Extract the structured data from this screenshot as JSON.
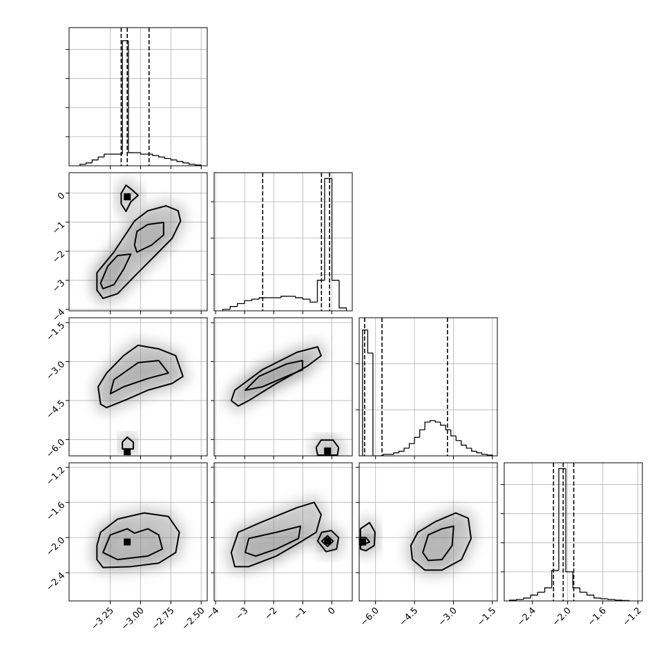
{
  "chart_data": {
    "type": "corner",
    "grid": true,
    "line_color": "#000000",
    "point_color": "#7f7f7f",
    "params": [
      {
        "lim": [
          -3.59,
          -2.45
        ],
        "ticks": [
          {
            "value": -3.25,
            "label": "−3.25"
          },
          {
            "value": -3.0,
            "label": "−3.00"
          },
          {
            "value": -2.75,
            "label": "−2.75"
          },
          {
            "value": -2.5,
            "label": "−2.50"
          }
        ]
      },
      {
        "lim": [
          -4.05,
          0.7
        ],
        "ticks": [
          {
            "value": -4,
            "label": "−4"
          },
          {
            "value": -3,
            "label": "−3"
          },
          {
            "value": -2,
            "label": "−2"
          },
          {
            "value": -1,
            "label": "−1"
          },
          0
        ]
      },
      {
        "lim": [
          -6.63,
          -1.31
        ],
        "ticks": [
          {
            "value": -6.0,
            "label": "−6.0"
          },
          {
            "value": -4.5,
            "label": "−4.5"
          },
          {
            "value": -3.0,
            "label": "−3.0"
          },
          {
            "value": -1.5,
            "label": "−1.5"
          }
        ]
      },
      {
        "lim": [
          -2.72,
          -1.15
        ],
        "ticks": [
          {
            "value": -2.4,
            "label": "−2.4"
          },
          {
            "value": -2.0,
            "label": "−2.0"
          },
          {
            "value": -1.6,
            "label": "−1.6"
          },
          {
            "value": -1.2,
            "label": "−1.2"
          }
        ]
      }
    ],
    "histograms": [
      {
        "param": 0,
        "ylim": [
          0,
          95
        ],
        "yticks": [
          20,
          40,
          60,
          80
        ],
        "bins": [
          -3.5,
          -3.45,
          -3.4,
          -3.35,
          -3.3,
          -3.25,
          -3.2,
          -3.15,
          -3.1,
          -3.05,
          -3.0,
          -2.95,
          -2.9,
          -2.85,
          -2.8,
          -2.75,
          -2.7,
          -2.65,
          -2.6,
          -2.55,
          -2.5
        ],
        "counts": [
          1,
          2,
          4,
          6,
          8,
          8,
          8,
          86,
          9,
          9,
          8,
          8,
          7,
          6,
          5,
          4,
          3,
          2,
          1,
          0.5
        ],
        "quantiles": [
          -3.16,
          -3.11,
          -2.93
        ]
      },
      {
        "param": 1,
        "ylim": [
          0,
          95
        ],
        "yticks": [
          25,
          50,
          75
        ],
        "bins": [
          -3.75,
          -3.5,
          -3.25,
          -3.0,
          -2.75,
          -2.5,
          -2.25,
          -2.0,
          -1.75,
          -1.5,
          -1.25,
          -1.0,
          -0.75,
          -0.5,
          -0.25,
          0,
          0.25,
          0.5
        ],
        "counts": [
          1,
          3,
          5,
          7,
          8,
          9,
          9,
          9,
          10,
          10,
          9,
          8,
          6,
          21,
          91,
          21,
          2
        ],
        "quantiles": [
          -2.38,
          -0.36,
          -0.08
        ]
      },
      {
        "param": 2,
        "ylim": [
          0,
          90
        ],
        "yticks": [
          30,
          60
        ],
        "bins": [
          -6.5,
          -6.3,
          -6.1,
          -5.9,
          -5.7,
          -5.5,
          -5.3,
          -5.1,
          -4.9,
          -4.7,
          -4.5,
          -4.3,
          -4.1,
          -3.9,
          -3.7,
          -3.5,
          -3.3,
          -3.1,
          -2.9,
          -2.7,
          -2.5,
          -2.3,
          -2.1,
          -1.9,
          -1.7,
          -1.5
        ],
        "counts": [
          82,
          67,
          0,
          0,
          1,
          1,
          2,
          3,
          5,
          8,
          12,
          17,
          22,
          23,
          22,
          20,
          17,
          13,
          10,
          7,
          5,
          3,
          2,
          1,
          0.5
        ],
        "quantiles": [
          -6.42,
          -5.75,
          -3.23
        ]
      },
      {
        "param": 3,
        "ylim": [
          0,
          95
        ],
        "yticks": [
          20,
          40,
          60,
          80
        ],
        "bins": [
          -2.66,
          -2.58,
          -2.5,
          -2.42,
          -2.34,
          -2.26,
          -2.18,
          -2.1,
          -2.02,
          -1.94,
          -1.86,
          -1.78,
          -1.7,
          -1.62,
          -1.54,
          -1.46,
          -1.38,
          -1.3
        ],
        "counts": [
          0.5,
          1,
          2,
          4,
          6,
          9,
          21,
          91,
          20,
          9,
          6,
          4,
          2,
          1.5,
          1,
          0.5,
          0.3
        ],
        "quantiles": [
          -2.16,
          -2.05,
          -1.93
        ]
      }
    ],
    "panels": [
      {
        "x_param": 0,
        "y_param": 1,
        "contours": [
          {
            "x": [
              -3.36,
              -3.36,
              -3.22,
              -3.05,
              -2.94,
              -2.79,
              -2.69,
              -2.67,
              -2.74,
              -2.88,
              -3.05,
              -3.19,
              -3.31
            ],
            "y": [
              -3.34,
              -2.74,
              -2.03,
              -0.96,
              -0.61,
              -0.44,
              -0.61,
              -0.96,
              -1.56,
              -2.15,
              -2.86,
              -3.46,
              -3.62
            ]
          },
          {
            "x": [
              -3.05,
              -3.03,
              -2.94,
              -2.81,
              -2.81,
              -2.91,
              -3.03
            ],
            "y": [
              -1.79,
              -1.32,
              -1.08,
              -1.01,
              -1.44,
              -1.79,
              -2.03
            ]
          },
          {
            "x": [
              -3.33,
              -3.27,
              -3.19,
              -3.08,
              -3.14,
              -3.22,
              -3.31
            ],
            "y": [
              -3.1,
              -2.51,
              -2.15,
              -2.1,
              -2.62,
              -3.15,
              -3.29
            ]
          },
          {
            "x": [
              -3.16,
              -3.12,
              -3.07,
              -3.02,
              -3.08,
              -3.12,
              -3.16
            ],
            "y": [
              -0.01,
              0.27,
              0.11,
              -0.08,
              -0.3,
              -0.63,
              -0.37
            ]
          }
        ],
        "peaks": {
          "x": [
            -3.11
          ],
          "y": [
            -0.13
          ]
        }
      },
      {
        "x_param": 0,
        "y_param": 2,
        "contours": [
          {
            "x": [
              -3.33,
              -3.35,
              -3.28,
              -3.14,
              -3.02,
              -2.85,
              -2.71,
              -2.65,
              -2.74,
              -2.94,
              -3.11,
              -3.28
            ],
            "y": [
              -4.64,
              -3.97,
              -3.44,
              -2.77,
              -2.37,
              -2.51,
              -2.77,
              -3.57,
              -3.84,
              -4.1,
              -4.45,
              -4.77
            ]
          },
          {
            "x": [
              -3.25,
              -3.22,
              -3.02,
              -2.85,
              -2.77,
              -2.94,
              -3.14
            ],
            "y": [
              -4.24,
              -3.7,
              -3.04,
              -2.96,
              -3.44,
              -3.65,
              -3.97
            ]
          },
          {
            "x": [
              -3.15,
              -3.15,
              -3.11,
              -3.06,
              -3.06
            ],
            "y": [
              -6.36,
              -6.1,
              -5.91,
              -6.1,
              -6.36
            ]
          }
        ],
        "peaks": {
          "x": [
            -3.11
          ],
          "y": [
            -6.47
          ]
        }
      },
      {
        "x_param": 0,
        "y_param": 3,
        "contours": [
          {
            "x": [
              -3.36,
              -3.33,
              -3.19,
              -2.97,
              -2.77,
              -2.68,
              -2.71,
              -2.85,
              -3.08,
              -3.31,
              -3.36
            ],
            "y": [
              -2.09,
              -1.94,
              -1.79,
              -1.72,
              -1.76,
              -1.94,
              -2.17,
              -2.29,
              -2.33,
              -2.34,
              -2.25
            ]
          },
          {
            "x": [
              -3.31,
              -3.25,
              -3.11,
              -3.05,
              -2.94,
              -2.85,
              -2.82,
              -2.94,
              -3.19
            ],
            "y": [
              -2.17,
              -1.97,
              -1.9,
              -1.95,
              -1.9,
              -1.97,
              -2.13,
              -2.21,
              -2.25
            ]
          }
        ],
        "peaks": {
          "x": [
            -3.11
          ],
          "y": [
            -2.05
          ]
        }
      },
      {
        "x_param": 1,
        "y_param": 2,
        "contours": [
          {
            "x": [
              -3.46,
              -3.34,
              -2.39,
              -1.2,
              -0.49,
              -0.37,
              -0.84,
              -1.91,
              -2.86,
              -3.22
            ],
            "y": [
              -4.5,
              -4.1,
              -3.31,
              -2.64,
              -2.43,
              -2.77,
              -3.17,
              -3.84,
              -4.5,
              -4.71
            ]
          },
          {
            "x": [
              -2.98,
              -2.51,
              -1.56,
              -1.01,
              -1.01,
              -1.56,
              -2.39
            ],
            "y": [
              -4.1,
              -3.57,
              -3.09,
              -2.96,
              -3.31,
              -3.57,
              -3.97
            ]
          },
          {
            "x": [
              -0.54,
              -0.37,
              0.04,
              0.23,
              0.19,
              -0.49
            ],
            "y": [
              -6.31,
              -6.02,
              -6.02,
              -6.31,
              -6.6,
              -6.6
            ]
          }
        ],
        "peaks": {
          "x": [
            -0.15
          ],
          "y": [
            -6.44
          ]
        }
      },
      {
        "x_param": 1,
        "y_param": 3,
        "contours": [
          {
            "x": [
              -3.46,
              -3.22,
              -2.39,
              -1.2,
              -0.61,
              -0.37,
              -0.54,
              -1.08,
              -1.91,
              -2.86,
              -3.34
            ],
            "y": [
              -2.17,
              -1.94,
              -1.82,
              -1.66,
              -1.6,
              -1.74,
              -1.94,
              -2.05,
              -2.21,
              -2.33,
              -2.33
            ]
          },
          {
            "x": [
              -2.98,
              -2.86,
              -1.91,
              -1.08,
              -1.15,
              -1.91,
              -2.62
            ],
            "y": [
              -2.17,
              -2.01,
              -1.94,
              -1.87,
              -2.01,
              -2.13,
              -2.21
            ]
          },
          {
            "x": [
              -0.49,
              -0.35,
              -0.02,
              0.23,
              0.16,
              -0.2
            ],
            "y": [
              -2.04,
              -1.94,
              -1.92,
              -2.0,
              -2.13,
              -2.16
            ]
          },
          {
            "x": [
              -0.35,
              -0.15,
              0.04,
              -0.15
            ],
            "y": [
              -2.04,
              -1.98,
              -2.04,
              -2.1
            ]
          }
        ],
        "peaks": {
          "x": [
            -0.15
          ],
          "y": [
            -2.04
          ]
        }
      },
      {
        "x_param": 2,
        "y_param": 3,
        "contours": [
          {
            "x": [
              -6.58,
              -6.23,
              -6.02,
              -6.05,
              -6.37,
              -6.58
            ],
            "y": [
              -1.9,
              -1.83,
              -1.94,
              -2.09,
              -2.15,
              -2.13
            ]
          },
          {
            "x": [
              -6.58,
              -6.37,
              -6.23,
              -6.58
            ],
            "y": [
              -2.0,
              -2.0,
              -2.05,
              -2.09
            ]
          },
          {
            "x": [
              -4.64,
              -4.37,
              -3.7,
              -2.91,
              -2.43,
              -2.32,
              -2.69,
              -3.44,
              -4.1,
              -4.58
            ],
            "y": [
              -2.09,
              -1.94,
              -1.82,
              -1.72,
              -1.78,
              -2.01,
              -2.25,
              -2.37,
              -2.37,
              -2.25
            ]
          },
          {
            "x": [
              -4.18,
              -3.97,
              -3.44,
              -2.99,
              -3.05,
              -3.44,
              -3.97
            ],
            "y": [
              -2.17,
              -1.97,
              -1.9,
              -1.87,
              -2.09,
              -2.25,
              -2.26
            ]
          }
        ],
        "peaks": {
          "x": [
            -6.5
          ],
          "y": [
            -2.05
          ]
        }
      }
    ]
  }
}
